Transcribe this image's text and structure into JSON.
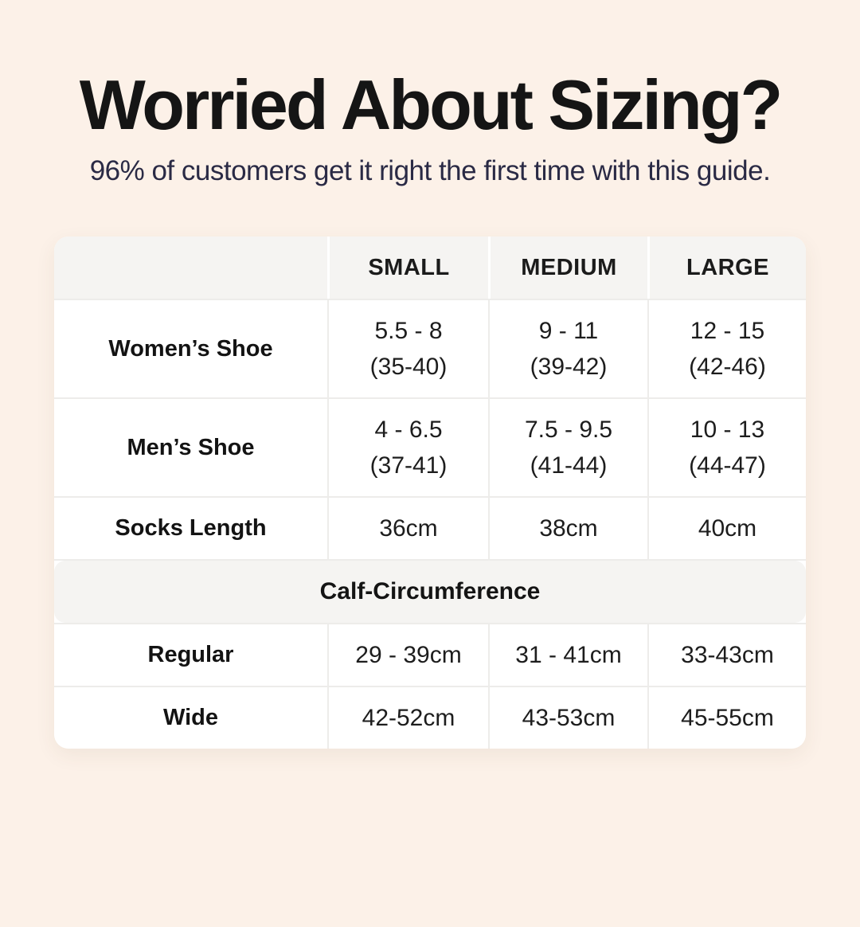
{
  "page": {
    "background_color": "#fcf1e8",
    "title_color": "#151515",
    "subtitle_color": "#2a2a45",
    "title": "Worried About Sizing?",
    "subtitle": "96% of customers get it right the first time with this guide."
  },
  "table": {
    "header": [
      "",
      "SMALL",
      "MEDIUM",
      "LARGE"
    ],
    "header_bg": "#f5f4f2",
    "rows": [
      {
        "label": "Women’s Shoe",
        "cells": [
          [
            "5.5 - 8",
            "(35-40)"
          ],
          [
            "9 - 11",
            "(39-42)"
          ],
          [
            "12 - 15",
            "(42-46)"
          ]
        ]
      },
      {
        "label": "Men’s Shoe",
        "cells": [
          [
            "4 - 6.5",
            "(37-41)"
          ],
          [
            "7.5 - 9.5",
            "(41-44)"
          ],
          [
            "10 - 13",
            "(44-47)"
          ]
        ]
      },
      {
        "label": "Socks Length",
        "cells": [
          [
            "36cm"
          ],
          [
            "38cm"
          ],
          [
            "40cm"
          ]
        ]
      }
    ],
    "section": {
      "title": "Calf-Circumference",
      "rows": [
        {
          "label": "Regular",
          "cells": [
            [
              "29 - 39cm"
            ],
            [
              "31 - 41cm"
            ],
            [
              "33-43cm"
            ]
          ]
        },
        {
          "label": "Wide",
          "cells": [
            [
              "42-52cm"
            ],
            [
              "43-53cm"
            ],
            [
              "45-55cm"
            ]
          ]
        }
      ]
    }
  },
  "chart_data": {
    "type": "table",
    "title": "Worried About Sizing?",
    "subtitle": "96% of customers get it right the first time with this guide.",
    "columns": [
      "",
      "SMALL",
      "MEDIUM",
      "LARGE"
    ],
    "rows": [
      [
        "Women’s Shoe",
        "5.5 - 8 (35-40)",
        "9 - 11 (39-42)",
        "12 - 15 (42-46)"
      ],
      [
        "Men’s Shoe",
        "4 - 6.5 (37-41)",
        "7.5 - 9.5 (41-44)",
        "10 - 13 (44-47)"
      ],
      [
        "Socks Length",
        "36cm",
        "38cm",
        "40cm"
      ],
      [
        "Calf-Circumference",
        "",
        "",
        ""
      ],
      [
        "Regular",
        "29 - 39cm",
        "31 - 41cm",
        "33-43cm"
      ],
      [
        "Wide",
        "42-52cm",
        "43-53cm",
        "45-55cm"
      ]
    ]
  }
}
